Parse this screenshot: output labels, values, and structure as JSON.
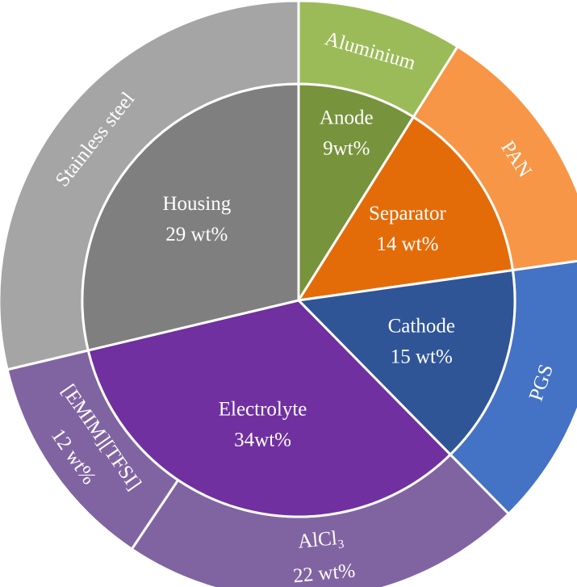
{
  "chart_data": {
    "type": "sunburst",
    "inner": {
      "categories": [
        "Anode",
        "Separator",
        "Cathode",
        "Electrolyte",
        "Housing"
      ],
      "values": [
        9,
        14,
        15,
        34,
        29
      ],
      "value_labels": [
        "9wt%",
        "14 wt%",
        "15 wt%",
        "34wt%",
        "29 wt%"
      ],
      "colors": [
        "#77933c",
        "#e36c09",
        "#2f5597",
        "#7030a0",
        "#7f7f7f"
      ]
    },
    "outer": {
      "categories": [
        "Aluminium",
        "PAN",
        "PGS",
        "AlCl₃",
        "[EMIM][TFSI]",
        "Stainless steel"
      ],
      "values": [
        9,
        14,
        15,
        22,
        12,
        29
      ],
      "value_labels": [
        null,
        null,
        null,
        "22 wt%",
        "12 wt%",
        null
      ],
      "colors": [
        "#9bbb59",
        "#f79646",
        "#4472c4",
        "#8064a2",
        "#8064a2",
        "#a5a5a5"
      ]
    }
  }
}
